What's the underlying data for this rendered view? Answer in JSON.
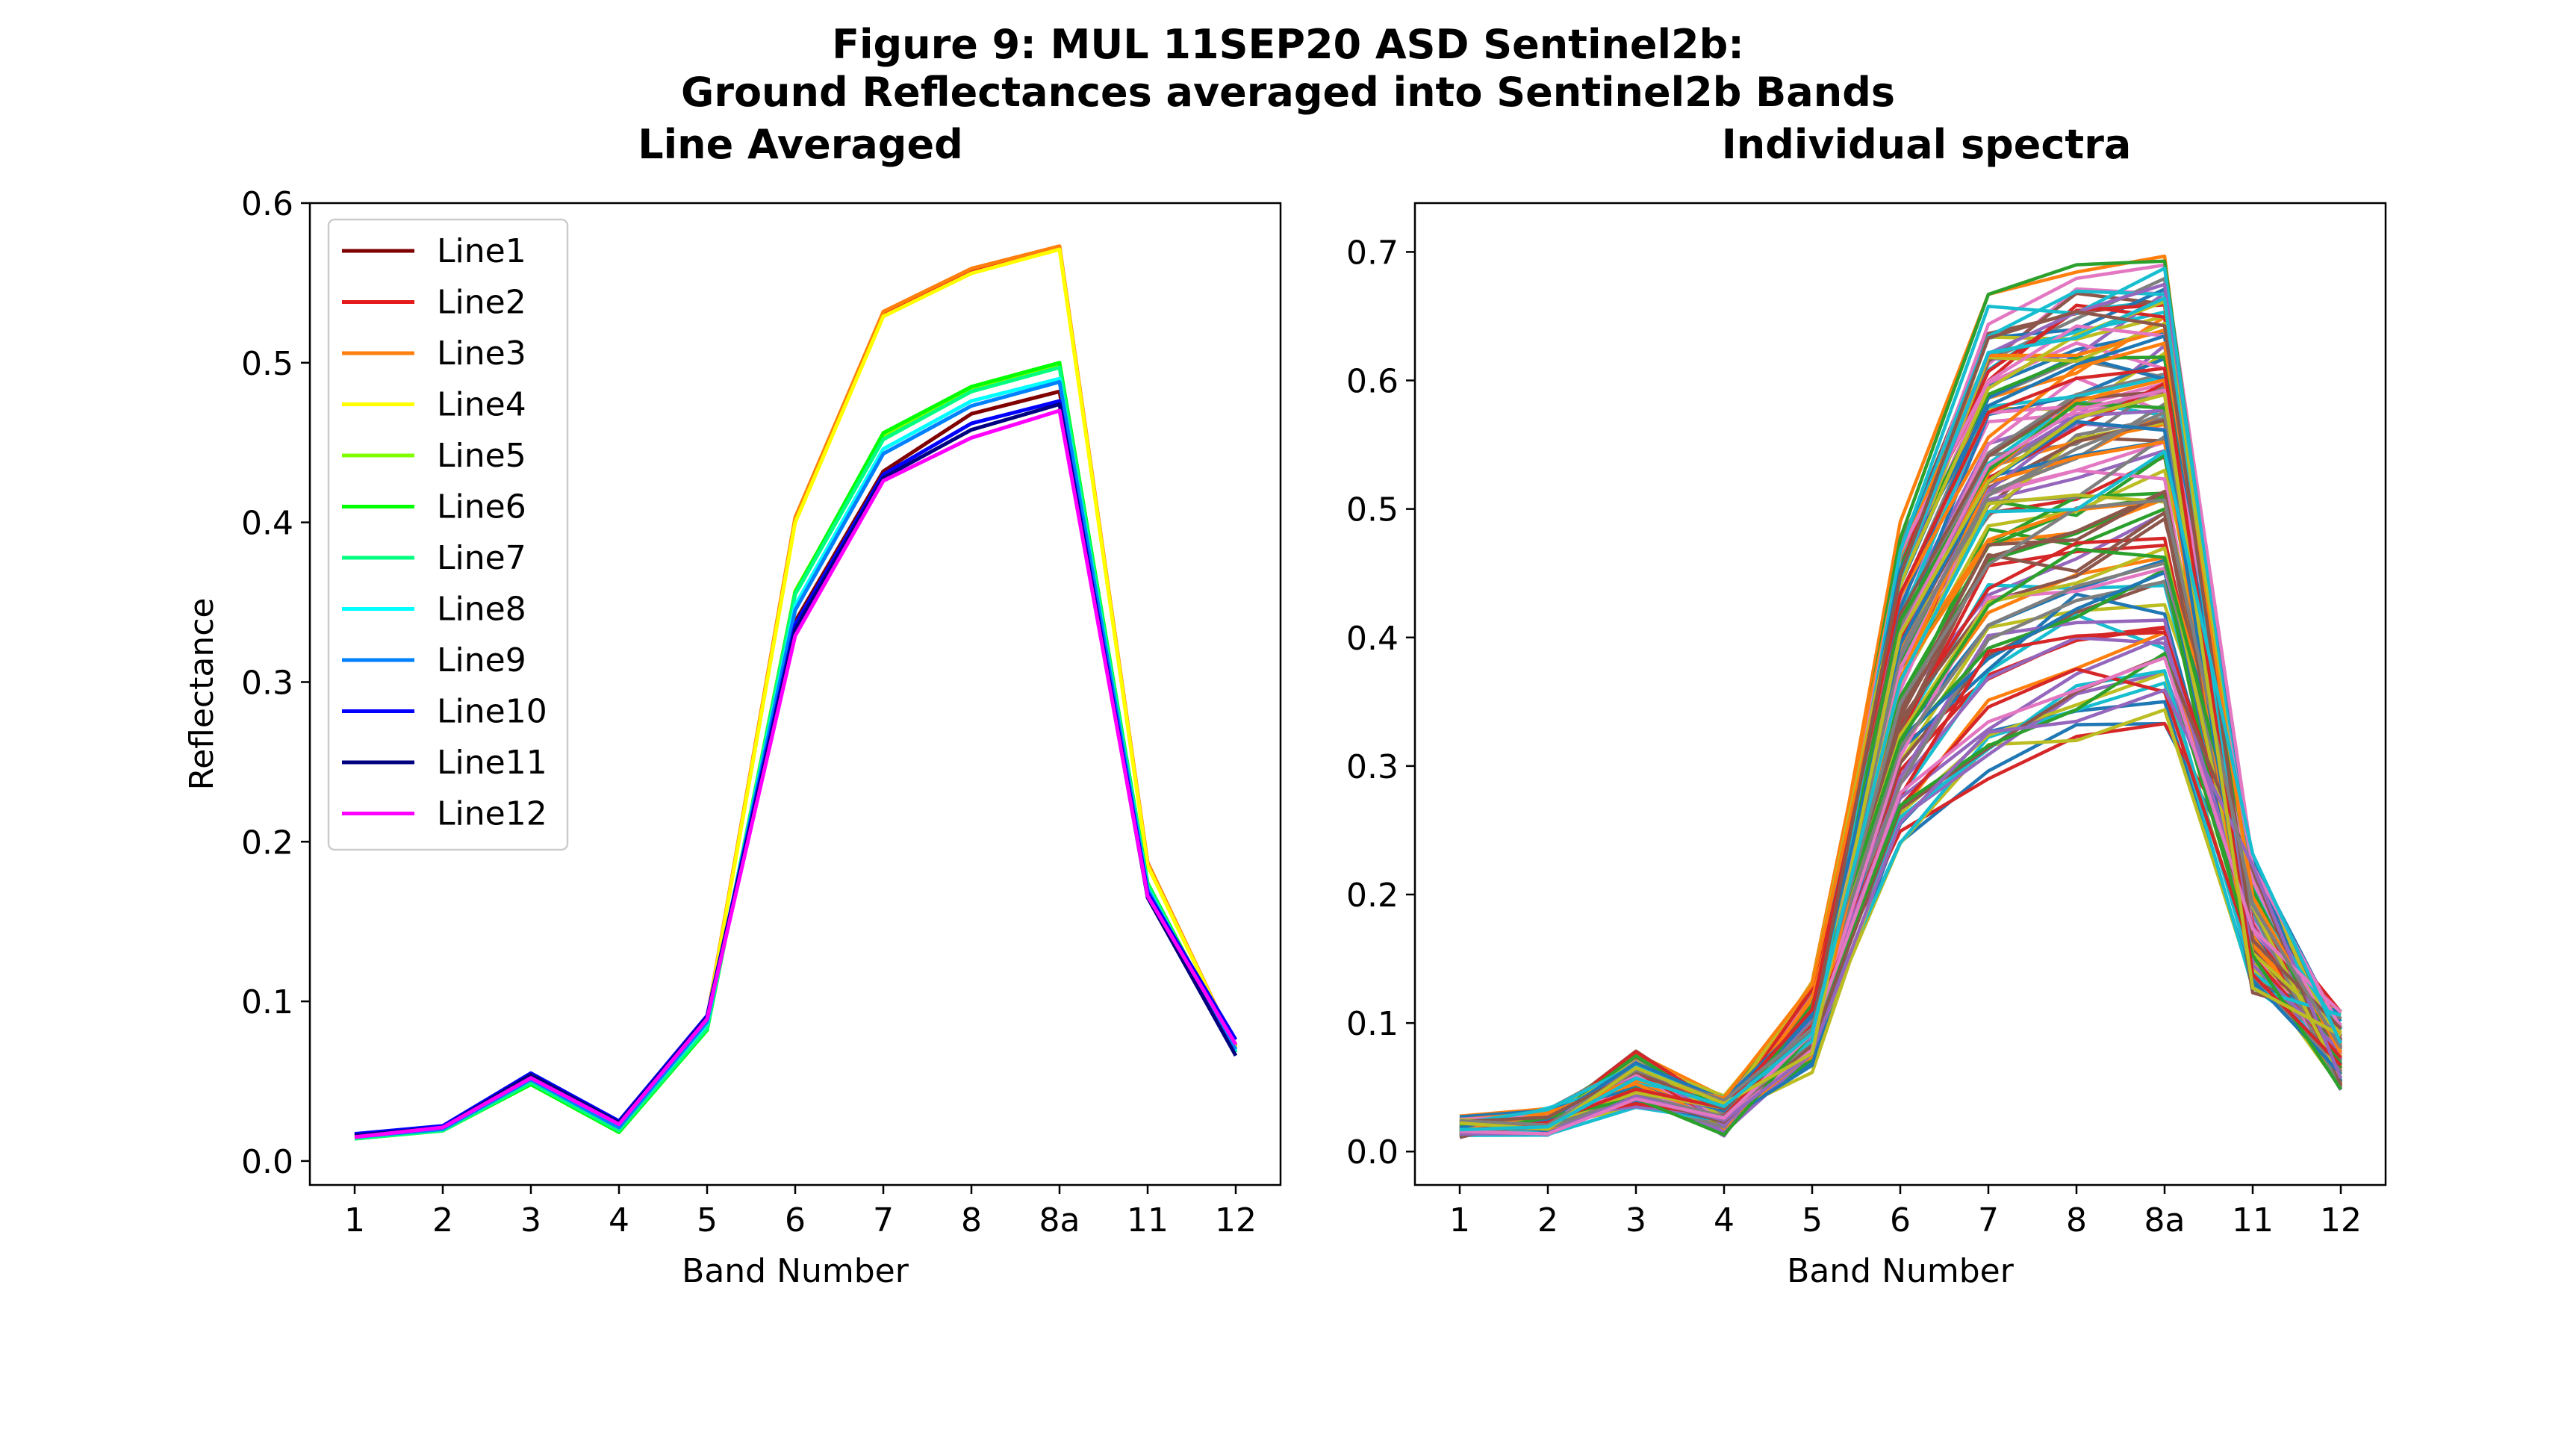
{
  "figure": {
    "title_line1": "Figure 9: MUL 11SEP20 ASD Sentinel2b:",
    "title_line2": "Ground Reflectances averaged into Sentinel2b Bands"
  },
  "chart_data": [
    {
      "type": "line",
      "title": "Line Averaged",
      "xlabel": "Band Number",
      "ylabel": "Reflectance",
      "categories": [
        "1",
        "2",
        "3",
        "4",
        "5",
        "6",
        "7",
        "8",
        "8a",
        "11",
        "12"
      ],
      "ylim": [
        -0.015,
        0.6
      ],
      "yticks": [
        0.0,
        0.1,
        0.2,
        0.3,
        0.4,
        0.5,
        0.6
      ],
      "grid": false,
      "legend": "upper-left",
      "series": [
        {
          "name": "Line1",
          "color": "#800000",
          "values": [
            0.016,
            0.021,
            0.054,
            0.024,
            0.088,
            0.338,
            0.432,
            0.468,
            0.482,
            0.17,
            0.072
          ]
        },
        {
          "name": "Line2",
          "color": "#e41a1c",
          "values": [
            0.016,
            0.021,
            0.054,
            0.024,
            0.089,
            0.402,
            0.531,
            0.558,
            0.572,
            0.186,
            0.071
          ]
        },
        {
          "name": "Line3",
          "color": "#ff7f0e",
          "values": [
            0.016,
            0.021,
            0.054,
            0.024,
            0.089,
            0.403,
            0.532,
            0.559,
            0.573,
            0.187,
            0.071
          ]
        },
        {
          "name": "Line4",
          "color": "#ffff00",
          "values": [
            0.016,
            0.021,
            0.053,
            0.023,
            0.088,
            0.4,
            0.529,
            0.556,
            0.571,
            0.185,
            0.071
          ]
        },
        {
          "name": "Line5",
          "color": "#80ff00",
          "values": [
            0.014,
            0.019,
            0.049,
            0.019,
            0.083,
            0.357,
            0.454,
            0.483,
            0.499,
            0.174,
            0.069
          ]
        },
        {
          "name": "Line6",
          "color": "#00ff00",
          "values": [
            0.014,
            0.019,
            0.048,
            0.018,
            0.082,
            0.356,
            0.456,
            0.485,
            0.5,
            0.174,
            0.068
          ]
        },
        {
          "name": "Line7",
          "color": "#00ff80",
          "values": [
            0.014,
            0.019,
            0.049,
            0.019,
            0.083,
            0.355,
            0.452,
            0.482,
            0.497,
            0.173,
            0.068
          ]
        },
        {
          "name": "Line8",
          "color": "#00ffff",
          "values": [
            0.015,
            0.02,
            0.051,
            0.021,
            0.086,
            0.348,
            0.446,
            0.476,
            0.49,
            0.171,
            0.069
          ]
        },
        {
          "name": "Line9",
          "color": "#0080ff",
          "values": [
            0.015,
            0.02,
            0.051,
            0.021,
            0.087,
            0.345,
            0.443,
            0.473,
            0.488,
            0.17,
            0.07
          ]
        },
        {
          "name": "Line10",
          "color": "#0000ff",
          "values": [
            0.017,
            0.022,
            0.055,
            0.025,
            0.091,
            0.336,
            0.43,
            0.462,
            0.476,
            0.168,
            0.076
          ]
        },
        {
          "name": "Line11",
          "color": "#000080",
          "values": [
            0.016,
            0.021,
            0.054,
            0.024,
            0.09,
            0.333,
            0.428,
            0.458,
            0.474,
            0.165,
            0.066
          ]
        },
        {
          "name": "Line12",
          "color": "#ff00ff",
          "values": [
            0.015,
            0.021,
            0.052,
            0.023,
            0.089,
            0.329,
            0.426,
            0.453,
            0.47,
            0.166,
            0.073
          ]
        }
      ]
    },
    {
      "type": "line",
      "title": "Individual spectra",
      "xlabel": "Band Number",
      "ylabel": "",
      "categories": [
        "1",
        "2",
        "3",
        "4",
        "5",
        "6",
        "7",
        "8",
        "8a",
        "11",
        "12"
      ],
      "ylim": [
        -0.026,
        0.738
      ],
      "yticks": [
        0.0,
        0.1,
        0.2,
        0.3,
        0.4,
        0.5,
        0.6,
        0.7
      ],
      "grid": false,
      "palette": [
        "#1f77b4",
        "#ff7f0e",
        "#2ca02c",
        "#d62728",
        "#9467bd",
        "#8c564b",
        "#e377c2",
        "#7f7f7f",
        "#bcbd22",
        "#17becf"
      ],
      "spectra_count": 120,
      "envelope": {
        "low": [
          0.009,
          0.012,
          0.033,
          0.011,
          0.06,
          0.235,
          0.29,
          0.318,
          0.333,
          0.122,
          0.047
        ],
        "high": [
          0.029,
          0.036,
          0.08,
          0.045,
          0.136,
          0.49,
          0.667,
          0.69,
          0.704,
          0.232,
          0.11
        ]
      }
    }
  ]
}
